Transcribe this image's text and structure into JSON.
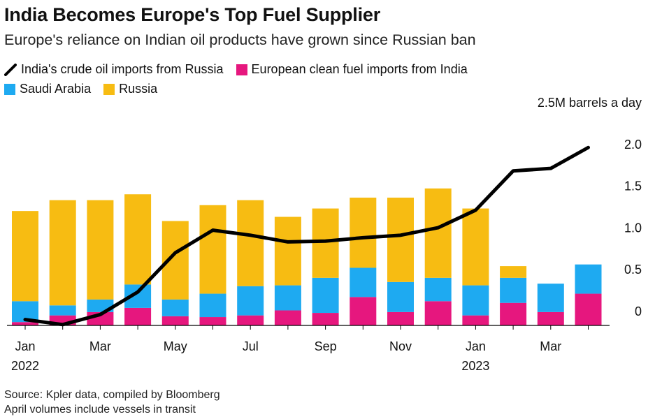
{
  "header": {
    "title": "India Becomes Europe's Top Fuel Supplier",
    "subtitle": "Europe's reliance on Indian oil products have grown since Russian ban"
  },
  "legend": [
    {
      "label": "India's crude oil imports from Russia",
      "color": "#000000",
      "kind": "line"
    },
    {
      "label": "European clean fuel imports from India",
      "color": "#e6177e",
      "kind": "box"
    },
    {
      "label": "Saudi Arabia",
      "color": "#1eaaf1",
      "kind": "box"
    },
    {
      "label": "Russia",
      "color": "#f7bc12",
      "kind": "box"
    }
  ],
  "footer": {
    "source": "Source: Kpler data, compiled by Bloomberg",
    "note": "April volumes include vessels in transit"
  },
  "chart_data": {
    "type": "bar",
    "stacked": true,
    "title": "India Becomes Europe's Top Fuel Supplier",
    "ylabel": "2.5M barrels a day",
    "ylim": [
      0,
      2.5
    ],
    "yticks": [
      0,
      0.5,
      1.0,
      1.5,
      2.0,
      2.5
    ],
    "ytick_labels": [
      "0",
      "0.5",
      "1.0",
      "1.5",
      "2.0",
      "2.5M barrels a day"
    ],
    "categories": [
      "Jan 2022",
      "Feb 2022",
      "Mar 2022",
      "Apr 2022",
      "May 2022",
      "Jun 2022",
      "Jul 2022",
      "Aug 2022",
      "Sep 2022",
      "Oct 2022",
      "Nov 2022",
      "Dec 2022",
      "Jan 2023",
      "Feb 2023",
      "Mar 2023",
      "Apr 2023"
    ],
    "xtick_labels": [
      {
        "index": 0,
        "month": "Jan",
        "year": "2022"
      },
      {
        "index": 2,
        "month": "Mar",
        "year": ""
      },
      {
        "index": 4,
        "month": "May",
        "year": ""
      },
      {
        "index": 6,
        "month": "Jul",
        "year": ""
      },
      {
        "index": 8,
        "month": "Sep",
        "year": ""
      },
      {
        "index": 10,
        "month": "Nov",
        "year": ""
      },
      {
        "index": 12,
        "month": "Jan",
        "year": "2023"
      },
      {
        "index": 14,
        "month": "Mar",
        "year": ""
      }
    ],
    "series": [
      {
        "name": "European clean fuel imports from India",
        "color": "#e6177e",
        "values": [
          0.04,
          0.12,
          0.16,
          0.21,
          0.11,
          0.1,
          0.12,
          0.18,
          0.15,
          0.34,
          0.16,
          0.29,
          0.12,
          0.27,
          0.16,
          0.38
        ]
      },
      {
        "name": "Saudi Arabia",
        "color": "#1eaaf1",
        "values": [
          0.25,
          0.12,
          0.15,
          0.28,
          0.2,
          0.28,
          0.35,
          0.3,
          0.42,
          0.35,
          0.36,
          0.28,
          0.36,
          0.3,
          0.34,
          0.35
        ]
      },
      {
        "name": "Russia",
        "color": "#f7bc12",
        "values": [
          1.08,
          1.26,
          1.19,
          1.08,
          0.94,
          1.06,
          1.03,
          0.82,
          0.83,
          0.84,
          1.01,
          1.07,
          0.92,
          0.14,
          0.0,
          0.0
        ]
      }
    ],
    "line": {
      "name": "India's crude oil imports from Russia",
      "color": "#000000",
      "values": [
        0.07,
        0.01,
        0.13,
        0.4,
        0.87,
        1.14,
        1.08,
        1.0,
        1.01,
        1.05,
        1.08,
        1.17,
        1.38,
        1.85,
        1.88,
        2.13
      ]
    }
  }
}
